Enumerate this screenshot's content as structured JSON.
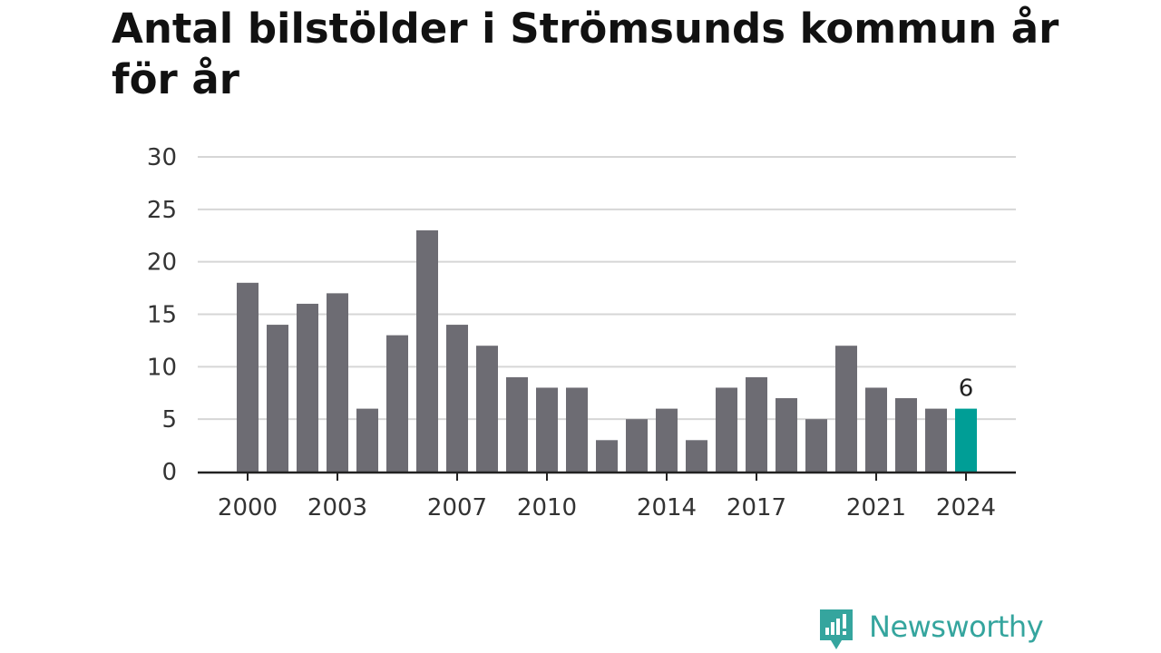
{
  "chart_data": {
    "type": "bar",
    "title": "Antal bilstölder i Strömsunds kommun år för år",
    "xlabel": "",
    "ylabel": "",
    "categories": [
      2000,
      2001,
      2002,
      2003,
      2004,
      2005,
      2006,
      2007,
      2008,
      2009,
      2010,
      2011,
      2012,
      2013,
      2014,
      2015,
      2016,
      2017,
      2018,
      2019,
      2020,
      2021,
      2022,
      2023,
      2024
    ],
    "values": [
      18,
      14,
      16,
      17,
      6,
      13,
      23,
      14,
      12,
      9,
      8,
      8,
      3,
      5,
      6,
      3,
      8,
      9,
      7,
      5,
      12,
      8,
      7,
      6,
      6
    ],
    "x_tick_labels": [
      "2000",
      "2003",
      "2007",
      "2010",
      "2014",
      "2017",
      "2021",
      "2024"
    ],
    "yticks": [
      0,
      5,
      10,
      15,
      20,
      25,
      30
    ],
    "ylim": [
      0,
      30
    ],
    "grid": true,
    "highlight": {
      "category": 2024,
      "label": "6"
    },
    "colors": {
      "bar": "#6d6c73",
      "highlight": "#009e96",
      "grid": "#d6d6d6",
      "axis": "#222222"
    }
  },
  "brand": {
    "name": "Newsworthy",
    "color": "#35a59e"
  }
}
